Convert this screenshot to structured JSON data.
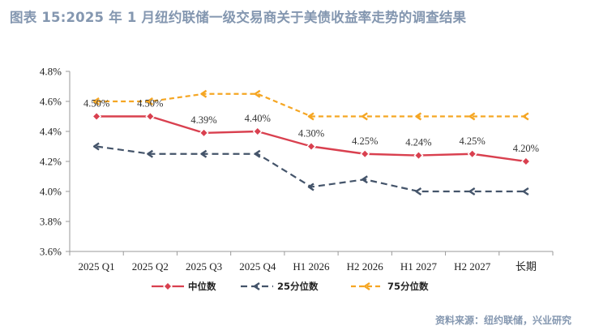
{
  "title": "图表 15:2025 年 1 月纽约联储一级交易商关于美债收益率走势的调查结果",
  "source": "资料来源：纽约联储，兴业研究",
  "colors": {
    "median": "#d9404f",
    "p25": "#44546a",
    "p75": "#f5a623",
    "title": "#8497b0",
    "axis": "#9a9a9a"
  },
  "chart_data": {
    "type": "line",
    "categories": [
      "2025 Q1",
      "2025 Q2",
      "2025 Q3",
      "2025 Q4",
      "H1 2026",
      "H2 2026",
      "H1 2027",
      "H2 2027",
      "长期"
    ],
    "y_ticks": [
      "4.8%",
      "4.6%",
      "4.4%",
      "4.2%",
      "4.0%",
      "3.8%",
      "3.6%"
    ],
    "ylim": [
      3.6,
      4.8
    ],
    "unit": "%",
    "grid": false,
    "legend_position": "bottom",
    "series": [
      {
        "name": "中位数",
        "values": [
          4.5,
          4.5,
          4.39,
          4.4,
          4.3,
          4.25,
          4.24,
          4.25,
          4.2
        ],
        "labels": [
          "4.50%",
          "4.50%",
          "4.39%",
          "4.40%",
          "4.30%",
          "4.25%",
          "4.24%",
          "4.25%",
          "4.20%"
        ],
        "style": "solid",
        "marker": "diamond"
      },
      {
        "name": "25分位数",
        "values": [
          4.3,
          4.25,
          4.25,
          4.25,
          4.03,
          4.08,
          4.0,
          4.0,
          4.0
        ],
        "style": "dashed",
        "marker": "arrow"
      },
      {
        "name": "75分位数",
        "values": [
          4.6,
          4.6,
          4.65,
          4.65,
          4.5,
          4.5,
          4.5,
          4.5,
          4.5
        ],
        "style": "dashed",
        "marker": "arrow"
      }
    ]
  }
}
